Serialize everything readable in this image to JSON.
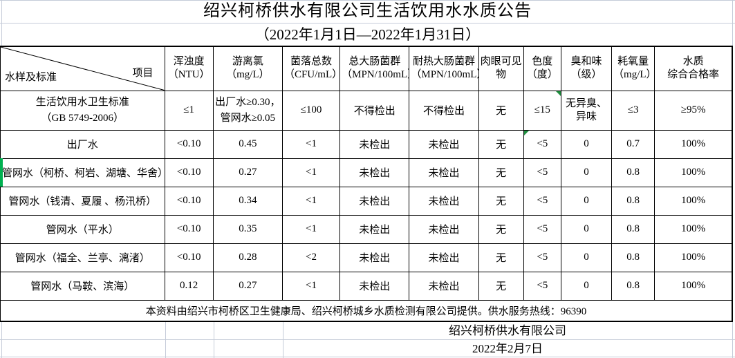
{
  "title": "绍兴柯桥供水有限公司生活饮用水水质公告",
  "subtitle": "（2022年1月1日—2022年1月31日）",
  "table": {
    "corner": {
      "top": "项目",
      "bottom": "水样及标准"
    },
    "headers": [
      "浑浊度\n（NTU）",
      "游离氯（mg/L）",
      "菌落总数\n（CFU/mL）",
      "总大肠菌群\n（MPN/100mL）",
      "耐热大肠菌群\n（MPN/100mL）",
      "肉眼可见物",
      "色度\n（度）",
      "臭和味\n（级）",
      "耗氧量\n（mg/L）",
      "水质\n综合合格率"
    ],
    "standard": [
      "生活饮用水卫生标准\n（GB 5749-2006）",
      "≤1",
      "出厂水≥0.30，\n管网水≥0.05",
      "≤100",
      "不得检出",
      "不得检出",
      "无",
      "≤15",
      "无异臭、\n异味",
      "≤3",
      "≥95%"
    ],
    "rows": [
      {
        "cells": [
          "出厂水",
          "<0.10",
          "0.45",
          "<1",
          "未检出",
          "未检出",
          "无",
          "<5",
          "0",
          "0.7",
          "100%"
        ]
      },
      {
        "cells": [
          "管网水（柯桥、柯岩、湖塘、华舍）",
          "<0.10",
          "0.27",
          "<1",
          "未检出",
          "未检出",
          "无",
          "<5",
          "0",
          "0.8",
          "100%"
        ]
      },
      {
        "cells": [
          "管网水（钱清、夏履 、杨汛桥）",
          "<0.10",
          "0.34",
          "<1",
          "未检出",
          "未检出",
          "无",
          "<5",
          "0",
          "0.8",
          "100%"
        ]
      },
      {
        "cells": [
          "管网水（平水）",
          "<0.10",
          "0.35",
          "<1",
          "未检出",
          "未检出",
          "无",
          "<5",
          "0",
          "0.8",
          "100%"
        ]
      },
      {
        "cells": [
          "管网水（福全、兰亭、漓渚）",
          "<0.10",
          "0.28",
          "<2",
          "未检出",
          "未检出",
          "无",
          "<5",
          "0",
          "0.8",
          "100%"
        ]
      },
      {
        "cells": [
          "管网水（马鞍、滨海）",
          "0.12",
          "0.27",
          "<1",
          "未检出",
          "未检出",
          "无",
          "<5",
          "0",
          "0.8",
          "100%"
        ]
      }
    ],
    "indicators": [
      {
        "row": 0,
        "col": 7,
        "corner": "top-left"
      }
    ]
  },
  "note": "本资料由绍兴市柯桥区卫生健康局、绍兴柯桥城乡水质检测有限公司提供。供水服务热线：96390",
  "footer": {
    "company": "绍兴柯桥供水有限公司",
    "date": "2022年2月7日"
  },
  "colors": {
    "table_border": "#000000",
    "spreadsheet_gridline": "#c4cbd8",
    "indicator_green": "#1e8e3e",
    "row_marker_green": "#00b050",
    "background": "#ffffff",
    "text": "#000000"
  }
}
